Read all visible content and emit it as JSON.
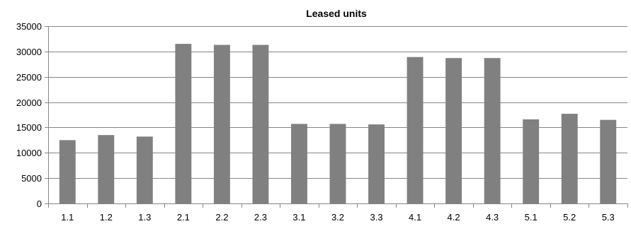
{
  "chart_data": {
    "type": "bar",
    "title": "Leased units",
    "categories": [
      "1.1",
      "1.2",
      "1.3",
      "2.1",
      "2.2",
      "2.3",
      "3.1",
      "3.2",
      "3.3",
      "4.1",
      "4.2",
      "4.3",
      "5.1",
      "5.2",
      "5.3"
    ],
    "series": [
      {
        "values": [
          12500,
          13500,
          13200,
          31500,
          31300,
          31300,
          15700,
          15700,
          15600,
          28900,
          28700,
          28700,
          16600,
          17700,
          16500
        ],
        "color": "#808080"
      }
    ],
    "xlabel": "",
    "ylabel": "",
    "ylim": [
      0,
      35000
    ],
    "yticks": [
      0,
      5000,
      10000,
      15000,
      20000,
      25000,
      30000,
      35000
    ],
    "grid": true,
    "legend": "none"
  }
}
